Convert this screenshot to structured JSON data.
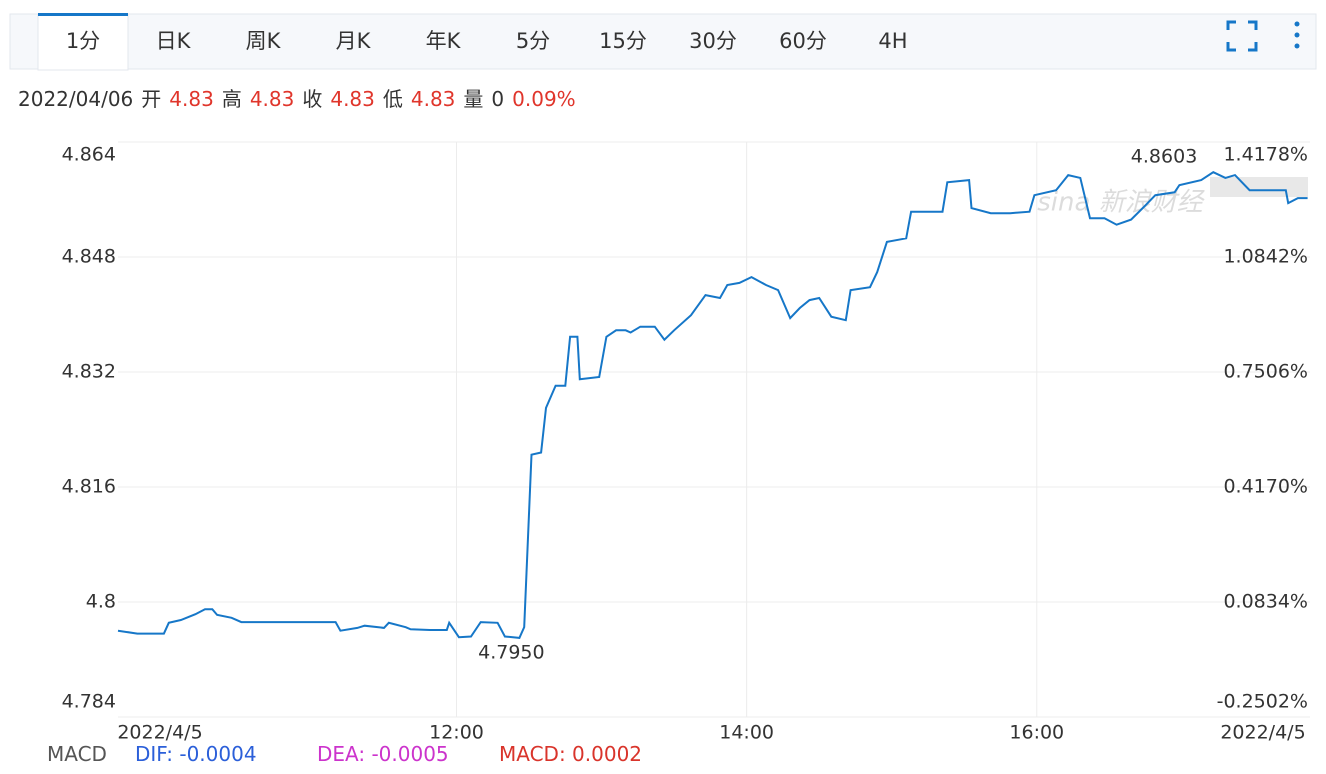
{
  "tabs": [
    "1分",
    "日K",
    "周K",
    "月K",
    "年K",
    "5分",
    "15分",
    "30分",
    "60分",
    "4H"
  ],
  "active_tab": 0,
  "info": {
    "date": "2022/04/06",
    "fields": [
      {
        "label": "开",
        "value": "4.83"
      },
      {
        "label": "高",
        "value": "4.83"
      },
      {
        "label": "收",
        "value": "4.83"
      },
      {
        "label": "低",
        "value": "4.83"
      }
    ],
    "volume": {
      "label": "量",
      "value": "0"
    },
    "change": "0.09%"
  },
  "macd": {
    "label": "MACD",
    "dif": "DIF: -0.0004",
    "dea": "DEA: -0.0005",
    "macd": "MACD: 0.0002"
  },
  "chart_data": {
    "type": "line",
    "x": [
      580,
      588,
      599,
      601,
      606,
      612,
      616,
      619,
      621,
      627,
      631,
      670,
      672,
      679,
      682,
      690,
      692,
      699,
      701,
      709,
      716,
      717,
      721,
      726,
      730,
      737,
      740,
      746,
      748,
      751,
      755,
      757,
      761,
      765,
      767,
      770,
      771,
      779,
      782,
      786,
      790,
      792,
      796,
      802,
      806,
      810,
      817,
      823,
      829,
      832,
      837,
      842,
      848,
      853,
      858,
      862,
      866,
      870,
      875,
      881,
      883,
      891,
      894,
      898,
      906,
      908,
      921,
      923,
      932,
      933,
      941,
      949,
      957,
      959,
      968,
      973,
      978,
      982,
      988,
      993,
      999,
      1005,
      1009,
      1017,
      1019,
      1028,
      1033,
      1038,
      1042,
      1048,
      1063,
      1064,
      1068,
      1072
    ],
    "values": [
      4.796,
      4.7956,
      4.7956,
      4.7971,
      4.7975,
      4.7983,
      4.799,
      4.799,
      4.7982,
      4.7978,
      4.7972,
      4.7972,
      4.796,
      4.7964,
      4.7967,
      4.7964,
      4.7971,
      4.7965,
      4.7962,
      4.7961,
      4.7961,
      4.7971,
      4.7951,
      4.7952,
      4.7972,
      4.7971,
      4.7952,
      4.795,
      4.7965,
      4.8205,
      4.8208,
      4.827,
      4.8301,
      4.8301,
      4.8369,
      4.8369,
      4.831,
      4.8313,
      4.8369,
      4.8378,
      4.8378,
      4.8375,
      4.8383,
      4.8383,
      4.8365,
      4.8378,
      4.8399,
      4.8427,
      4.8423,
      4.8441,
      4.8444,
      4.8452,
      4.8441,
      4.8434,
      4.8395,
      4.8409,
      4.842,
      4.8423,
      4.8397,
      4.8392,
      4.8434,
      4.8438,
      4.8459,
      4.8501,
      4.8506,
      4.8543,
      4.8543,
      4.8584,
      4.8587,
      4.8548,
      4.8541,
      4.8541,
      4.8543,
      4.8566,
      4.8573,
      4.8594,
      4.859,
      4.8534,
      4.8534,
      4.8525,
      4.8532,
      4.8552,
      4.8566,
      4.857,
      4.858,
      4.8587,
      4.8598,
      4.859,
      4.8594,
      4.8573,
      4.8573,
      4.8555,
      4.8562,
      4.8562
    ],
    "color": "#1677c8",
    "xlim": [
      580,
      1073
    ],
    "xticks": [
      {
        "value": 720,
        "label": "12:00"
      },
      {
        "value": 840,
        "label": "14:00"
      },
      {
        "value": 960,
        "label": "16:00"
      }
    ],
    "x_start_label": "2022/4/5",
    "x_end_label": "2022/4/5",
    "ylim": [
      4.784,
      4.864
    ],
    "yticks": [
      4.784,
      4.8,
      4.816,
      4.832,
      4.848,
      4.864
    ],
    "y2lim": [
      -0.2502,
      1.4178
    ],
    "y2ticks": [
      {
        "value": -0.2502,
        "label": "-0.2502%"
      },
      {
        "value": 0.0834,
        "label": "0.0834%"
      },
      {
        "value": 0.417,
        "label": "0.4170%"
      },
      {
        "value": 0.7506,
        "label": "0.7506%"
      },
      {
        "value": 1.0842,
        "label": "1.0842%"
      },
      {
        "value": 1.4178,
        "label": "1.4178%"
      }
    ],
    "up_color": "#e0352b",
    "down_color": "#2a9d44",
    "grid": true,
    "max_label": "4.8603",
    "min_label": "4.7950",
    "watermark": "sina 新浪财经"
  }
}
